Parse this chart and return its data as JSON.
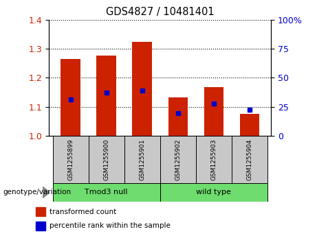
{
  "title": "GDS4827 / 10481401",
  "samples": [
    "GSM1255899",
    "GSM1255900",
    "GSM1255901",
    "GSM1255902",
    "GSM1255903",
    "GSM1255904"
  ],
  "red_values": [
    1.265,
    1.278,
    1.325,
    1.133,
    1.168,
    1.075
  ],
  "blue_values": [
    1.125,
    1.148,
    1.155,
    1.078,
    1.112,
    1.09
  ],
  "ylim": [
    1.0,
    1.4
  ],
  "y2lim": [
    0,
    100
  ],
  "yticks": [
    1.0,
    1.1,
    1.2,
    1.3,
    1.4
  ],
  "y2ticks": [
    0,
    25,
    50,
    75,
    100
  ],
  "genotype_label": "genotype/variation",
  "legend_red": "transformed count",
  "legend_blue": "percentile rank within the sample",
  "red_color": "#cc2200",
  "blue_color": "#0000cc",
  "bar_width": 0.55,
  "group_box_color": "#c8c8c8",
  "green_color": "#6fdc6f",
  "group_defs": [
    {
      "label": "Tmod3 null",
      "start": 0,
      "end": 2
    },
    {
      "label": "wild type",
      "start": 3,
      "end": 5
    }
  ]
}
